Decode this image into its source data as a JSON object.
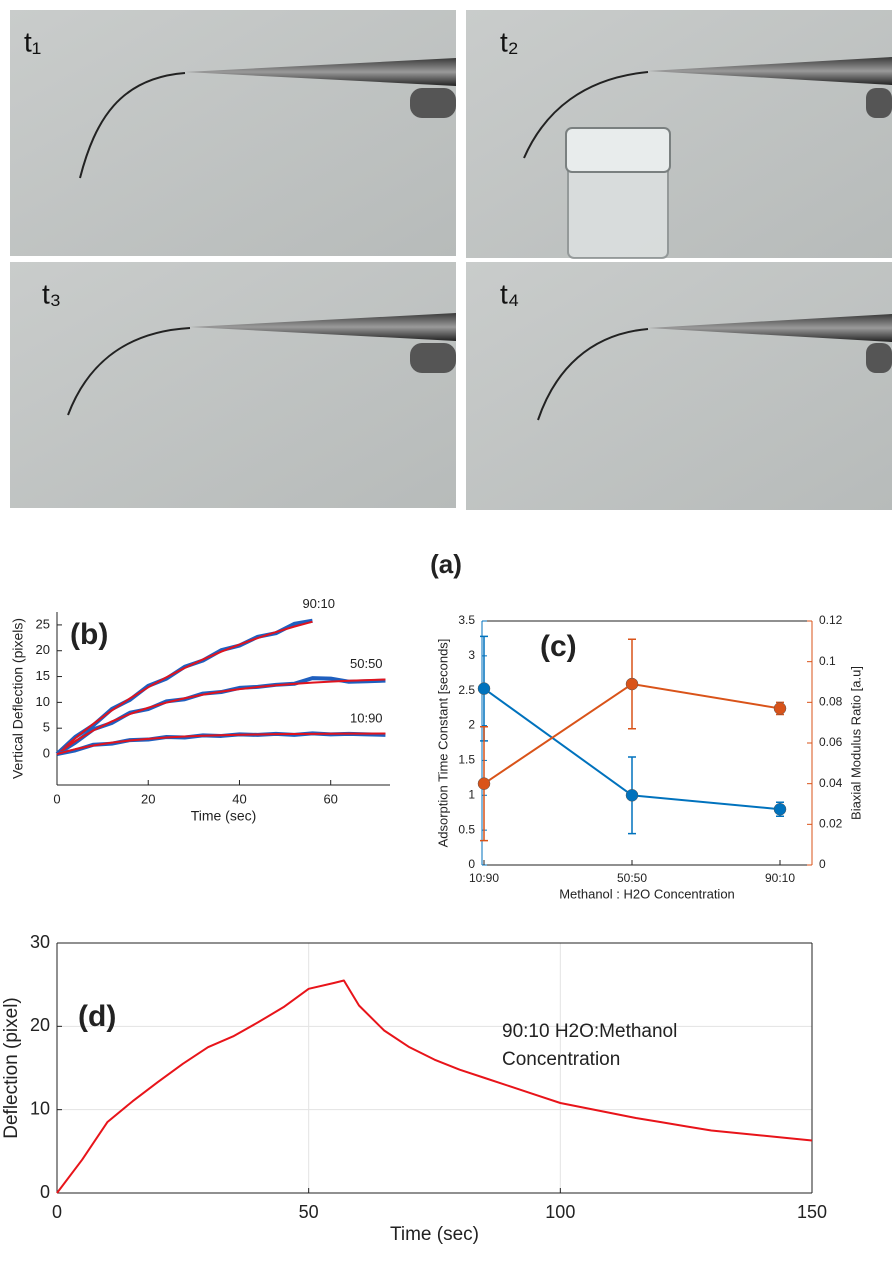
{
  "photos": {
    "labels": [
      "t₁",
      "t₂",
      "t₃",
      "t₄"
    ],
    "caption": "(a)"
  },
  "chart_data": [
    {
      "type": "line",
      "label": "(b)",
      "x_label": "Time (sec)",
      "y_label": "Vertical Deflection (pixels)",
      "x": [
        0,
        4,
        8,
        12,
        16,
        20,
        24,
        28,
        32,
        36,
        40,
        44,
        48,
        52,
        56,
        60,
        64,
        68,
        72
      ],
      "xlim": [
        0,
        73
      ],
      "xticks": [
        0,
        20,
        40,
        60
      ],
      "ylim": [
        -6,
        27.5
      ],
      "yticks": [
        0,
        5,
        10,
        15,
        20,
        25
      ],
      "annotations": [
        "90:10",
        "50:50",
        "10:90"
      ],
      "series": [
        {
          "color": "#1f5fbf",
          "values": [
            0,
            3.3,
            5.6,
            8.7,
            10.5,
            13.2,
            14.6,
            16.9,
            18.1,
            20.1,
            21.0,
            22.7,
            23.4,
            25.2,
            25.8,
            null,
            null,
            null,
            null
          ]
        },
        {
          "color": "#e0141e",
          "values": [
            0,
            3.06,
            5.87,
            8.43,
            10.78,
            12.92,
            14.87,
            16.67,
            18.32,
            19.82,
            21.2,
            22.46,
            23.62,
            24.67,
            25.63,
            null,
            null,
            null,
            null
          ]
        },
        {
          "color": "#1f5fbf",
          "values": [
            0,
            2.2,
            4.8,
            6.0,
            8.0,
            8.7,
            10.2,
            10.6,
            11.7,
            12.0,
            12.8,
            13.0,
            13.4,
            13.6,
            14.7,
            14.6,
            14.0,
            14.1,
            14.2
          ]
        },
        {
          "color": "#e0141e",
          "values": [
            0,
            2.49,
            4.58,
            6.31,
            7.75,
            8.96,
            9.96,
            10.8,
            11.5,
            12.08,
            12.57,
            12.97,
            13.31,
            13.59,
            13.83,
            14.02,
            14.18,
            14.32,
            14.43
          ]
        },
        {
          "color": "#1f5fbf",
          "values": [
            0,
            0.7,
            1.8,
            2.0,
            2.7,
            2.8,
            3.3,
            3.2,
            3.6,
            3.5,
            3.8,
            3.7,
            3.9,
            3.7,
            4.0,
            3.8,
            3.9,
            3.8,
            3.7
          ]
        },
        {
          "color": "#e0141e",
          "values": [
            0,
            0.94,
            1.65,
            2.2,
            2.62,
            2.94,
            3.19,
            3.38,
            3.53,
            3.64,
            3.72,
            3.79,
            3.84,
            3.88,
            3.9,
            3.93,
            3.94,
            3.96,
            3.97
          ]
        }
      ]
    },
    {
      "type": "line",
      "label": "(c)",
      "x_label": "Methanol : H2O Concentration",
      "y_label": "Adsorption Time Constant [seconds]",
      "y2_label": "Biaxial Modulus Ratio [a.u]",
      "categories": [
        "10:90",
        "50:50",
        "90:10"
      ],
      "ylim": [
        0,
        3.5
      ],
      "yticks": [
        0,
        0.5,
        1,
        1.5,
        2,
        2.5,
        3,
        3.5
      ],
      "y2lim": [
        0,
        0.12
      ],
      "y2ticks": [
        0,
        0.02,
        0.04,
        0.06,
        0.08,
        0.1,
        0.12
      ],
      "series": [
        {
          "color": "#0072bd",
          "values": [
            2.53,
            1.0,
            0.8
          ],
          "errors": [
            0.75,
            0.55,
            0.1
          ]
        },
        {
          "color": "#d95319",
          "axis": "y2",
          "values": [
            0.04,
            0.089,
            0.077
          ],
          "errors": [
            0.028,
            0.022,
            0.003
          ]
        }
      ]
    },
    {
      "type": "line",
      "label": "(d)",
      "x_label": "Time (sec)",
      "y_label": "Deflection (pixel)",
      "annotation": [
        "90:10 H2O:Methanol",
        "Concentration"
      ],
      "grid": true,
      "x": [
        0,
        5,
        10,
        15,
        20,
        25,
        30,
        35,
        40,
        45,
        50,
        55,
        57,
        60,
        65,
        70,
        75,
        80,
        85,
        90,
        95,
        100,
        105,
        110,
        115,
        120,
        125,
        130,
        135,
        140,
        145,
        150
      ],
      "xlim": [
        0,
        150
      ],
      "xticks": [
        0,
        50,
        100,
        150
      ],
      "ylim": [
        0,
        30
      ],
      "yticks": [
        0,
        10,
        20,
        30
      ],
      "series": [
        {
          "color": "#e8141a",
          "values": [
            0,
            4,
            8.5,
            11,
            13.3,
            15.5,
            17.5,
            18.8,
            20.5,
            22.3,
            24.5,
            25.2,
            25.5,
            22.5,
            19.5,
            17.5,
            16,
            14.8,
            13.8,
            12.8,
            11.8,
            10.8,
            10.2,
            9.6,
            9,
            8.5,
            8,
            7.5,
            7.2,
            6.9,
            6.6,
            6.3
          ]
        }
      ]
    }
  ]
}
